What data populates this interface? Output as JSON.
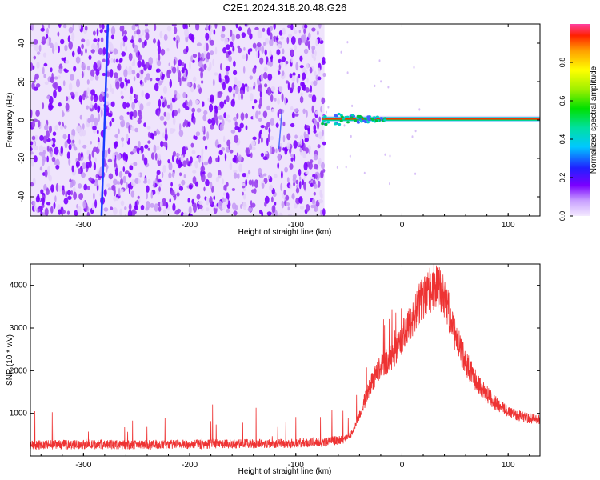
{
  "title": "C2E1.2024.318.20.48.G26",
  "chart_data": [
    {
      "type": "heatmap",
      "xlabel": "Height of straight line (km)",
      "ylabel": "Frequency (Hz)",
      "xlim": [
        -350,
        130
      ],
      "ylim": [
        -50,
        50
      ],
      "xticks": [
        -300,
        -200,
        -100,
        0,
        100
      ],
      "yticks": [
        -40,
        -20,
        0,
        20,
        40
      ],
      "grid": false,
      "colorbar": {
        "label": "Normalized spectral amplitude",
        "range": [
          0,
          1
        ],
        "ticks": [
          0.0,
          0.2,
          0.4,
          0.6,
          0.8
        ],
        "tick_labels": [
          "0.0",
          "0.2",
          "0.4",
          "0.6",
          "0.8"
        ]
      },
      "features": {
        "noise_region_x": [
          -350,
          -73
        ],
        "signal_line_y": 0.5,
        "signal_line_x": [
          -75,
          130
        ],
        "slanted_streak": [
          [
            -283,
            -50
          ],
          [
            -277,
            50
          ]
        ]
      },
      "colors": {
        "noise": [
          "#7b00ff",
          "#9a40f0",
          "#c79cf5",
          "#e4d3fa"
        ],
        "signal_core": "#ff2a00",
        "signal_edge": "#00c040",
        "streak": "#1a3cff"
      }
    },
    {
      "type": "line",
      "xlabel": "Height of straight line (km)",
      "ylabel": "SNR (10 * v/v)",
      "xlim": [
        -350,
        130
      ],
      "ylim": [
        0,
        4500
      ],
      "xticks": [
        -300,
        -200,
        -100,
        0,
        100
      ],
      "yticks": [
        1000,
        2000,
        3000,
        4000
      ],
      "grid": false,
      "series": [
        {
          "color": "#ee3333",
          "x": [
            -350,
            -300,
            -250,
            -200,
            -150,
            -100,
            -70,
            -55,
            -48,
            -45,
            -40,
            -35,
            -30,
            -25,
            -20,
            -15,
            -10,
            -5,
            0,
            5,
            10,
            15,
            20,
            25,
            30,
            35,
            40,
            45,
            50,
            60,
            70,
            80,
            90,
            100,
            110,
            120,
            130
          ],
          "y": [
            260,
            270,
            265,
            275,
            290,
            300,
            330,
            400,
            500,
            650,
            950,
            1300,
            1650,
            1900,
            2100,
            2200,
            2300,
            2500,
            2750,
            3000,
            3250,
            3500,
            3700,
            3850,
            3950,
            3900,
            3700,
            3300,
            2800,
            2200,
            1750,
            1450,
            1200,
            1050,
            950,
            880,
            840
          ]
        }
      ]
    }
  ]
}
